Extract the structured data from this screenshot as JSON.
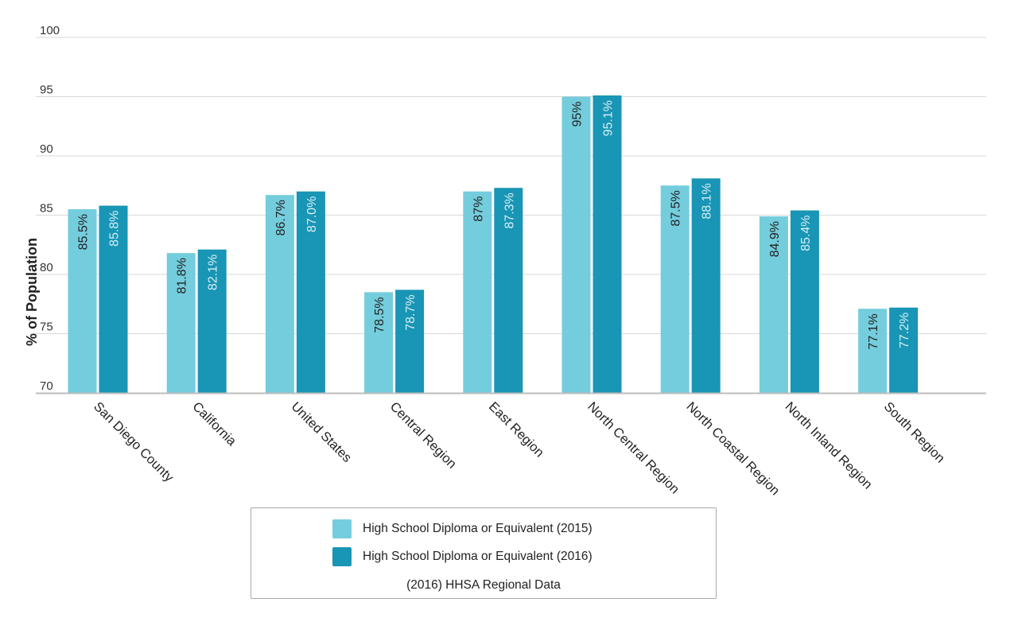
{
  "chart_data": {
    "type": "bar",
    "ylabel": "% of Population",
    "ylim": [
      70,
      100
    ],
    "yticks": [
      70,
      75,
      80,
      85,
      90,
      95,
      100
    ],
    "categories": [
      "San Diego County",
      "California",
      "United States",
      "Central Region",
      "East Region",
      "North Central Region",
      "North Coastal Region",
      "North Inland Region",
      "South Region"
    ],
    "series": [
      {
        "name": "High School Diploma or Equivalent (2015)",
        "color": "#74cddc",
        "values": [
          85.5,
          81.8,
          86.7,
          78.5,
          87,
          95,
          87.5,
          84.9,
          77.1
        ],
        "labels": [
          "85.5%",
          "81.8%",
          "86.7%",
          "78.5%",
          "87%",
          "95%",
          "87.5%",
          "84.9%",
          "77.1%"
        ]
      },
      {
        "name": "High School Diploma or Equivalent (2016)",
        "color": "#1995b5",
        "values": [
          85.8,
          82.1,
          87.0,
          78.7,
          87.3,
          95.1,
          88.1,
          85.4,
          77.2
        ],
        "labels": [
          "85.8%",
          "82.1%",
          "87.0%",
          "78.7%",
          "87.3%",
          "95.1%",
          "88.1%",
          "85.4%",
          "77.2%"
        ]
      }
    ],
    "legend": {
      "position": "bottom",
      "caption": "(2016) HHSA Regional Data"
    },
    "grid": true
  }
}
